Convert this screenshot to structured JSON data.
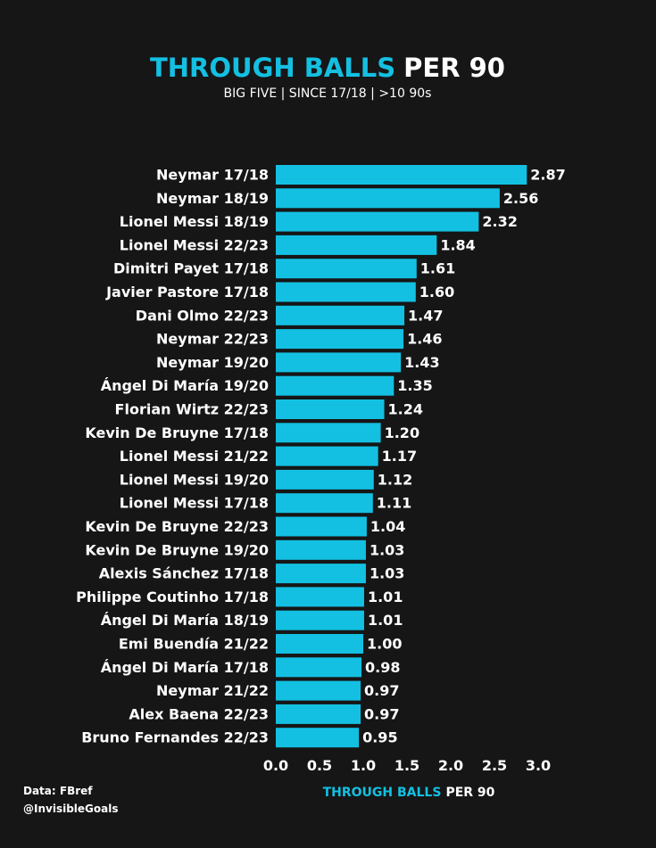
{
  "colors": {
    "background": "#161616",
    "accent": "#13c0e2",
    "text": "#ffffff"
  },
  "title": {
    "highlight": "THROUGH BALLS",
    "rest": "PER 90"
  },
  "subtitle": "BIG FIVE | SINCE 17/18 | >10 90s",
  "footer": {
    "source": "Data: FBref",
    "handle": "@InvisibleGoals"
  },
  "chart_data": {
    "type": "bar",
    "orientation": "horizontal",
    "title": "THROUGH BALLS PER 90",
    "subtitle": "BIG FIVE | SINCE 17/18 | >10 90s",
    "xlabel": "THROUGH BALLS PER 90",
    "xlabel_parts": {
      "highlight": "THROUGH BALLS",
      "rest": "PER 90"
    },
    "xlim": [
      0,
      3.0
    ],
    "xticks": [
      "0.0",
      "0.5",
      "1.0",
      "1.5",
      "2.0",
      "2.5",
      "3.0"
    ],
    "grid": false,
    "legend": "none",
    "bar_color": "#13c0e2",
    "categories": [
      "Neymar 17/18",
      "Neymar 18/19",
      "Lionel Messi 18/19",
      "Lionel Messi 22/23",
      "Dimitri Payet 17/18",
      "Javier Pastore 17/18",
      "Dani Olmo 22/23",
      "Neymar 22/23",
      "Neymar 19/20",
      "Ángel Di María 19/20",
      "Florian Wirtz 22/23",
      "Kevin De Bruyne 17/18",
      "Lionel Messi 21/22",
      "Lionel Messi 19/20",
      "Lionel Messi 17/18",
      "Kevin De Bruyne 22/23",
      "Kevin De Bruyne 19/20",
      "Alexis Sánchez 17/18",
      "Philippe Coutinho 17/18",
      "Ángel Di María 18/19",
      "Emi Buendía 21/22",
      "Ángel Di María 17/18",
      "Neymar 21/22",
      "Alex Baena 22/23",
      "Bruno Fernandes 22/23"
    ],
    "values": [
      2.87,
      2.56,
      2.32,
      1.84,
      1.61,
      1.6,
      1.47,
      1.46,
      1.43,
      1.35,
      1.24,
      1.2,
      1.17,
      1.12,
      1.11,
      1.04,
      1.03,
      1.03,
      1.01,
      1.01,
      1.0,
      0.98,
      0.97,
      0.97,
      0.95
    ],
    "value_labels": [
      "2.87",
      "2.56",
      "2.32",
      "1.84",
      "1.61",
      "1.60",
      "1.47",
      "1.46",
      "1.43",
      "1.35",
      "1.24",
      "1.20",
      "1.17",
      "1.12",
      "1.11",
      "1.04",
      "1.03",
      "1.03",
      "1.01",
      "1.01",
      "1.00",
      "0.98",
      "0.97",
      "0.97",
      "0.95"
    ]
  }
}
